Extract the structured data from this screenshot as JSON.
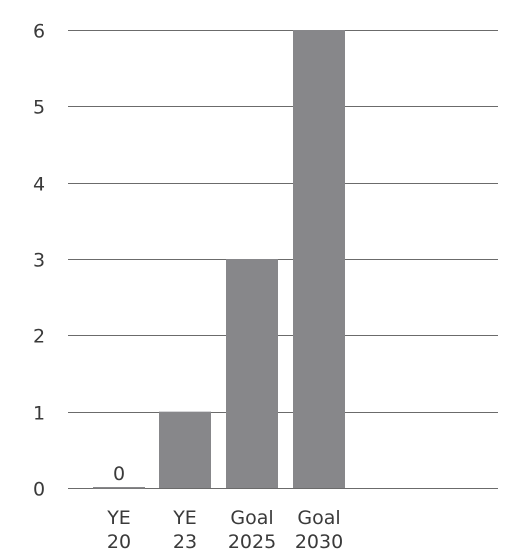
{
  "chart_data": {
    "type": "bar",
    "categories": [
      [
        "YE",
        "20"
      ],
      [
        "YE",
        "23"
      ],
      [
        "Goal",
        "2025"
      ],
      [
        "Goal",
        "2030"
      ]
    ],
    "values": [
      0,
      1,
      3,
      6
    ],
    "data_labels": [
      "0",
      "",
      "",
      ""
    ],
    "ylim": [
      0,
      6
    ],
    "yticks": [
      "0",
      "1",
      "2",
      "3",
      "4",
      "5",
      "6"
    ],
    "grid": true,
    "title": "",
    "xlabel": "",
    "ylabel": "",
    "colors": {
      "bar": "#87878a",
      "grid": "#6b6b6b",
      "text": "#3a3a3a"
    }
  }
}
